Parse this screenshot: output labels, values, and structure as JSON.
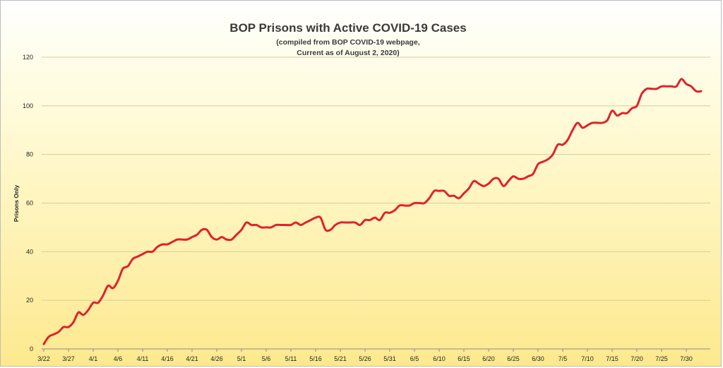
{
  "chart_data": {
    "type": "line",
    "title": "BOP Prisons with Active COVID-19 Cases",
    "subtitle_lines": [
      "(compiled from BOP COVID-19 webpage,",
      "Current as of August 2, 2020)"
    ],
    "xlabel": "",
    "ylabel": "Prisons Only",
    "ylim": [
      0,
      120
    ],
    "yticks": [
      0,
      20,
      40,
      60,
      80,
      100,
      120
    ],
    "grid": "horizontal",
    "legend": "none",
    "line_color": "#e0222b",
    "start_date": "3/22",
    "xtick_labels": [
      "3/22",
      "3/27",
      "4/1",
      "4/6",
      "4/11",
      "4/16",
      "4/21",
      "4/26",
      "5/1",
      "5/6",
      "5/11",
      "5/16",
      "5/21",
      "5/26",
      "5/31",
      "6/5",
      "6/10",
      "6/15",
      "6/20",
      "6/25",
      "6/30",
      "7/5",
      "7/10",
      "7/15",
      "7/20",
      "7/25",
      "7/30"
    ],
    "series": [
      {
        "values": [
          2,
          5,
          6,
          7,
          9,
          9,
          11,
          15,
          14,
          16,
          19,
          19,
          22,
          26,
          25,
          28,
          33,
          34,
          37,
          38,
          39,
          40,
          40,
          42,
          43,
          43,
          44,
          45,
          45,
          45,
          46,
          47,
          49,
          49,
          46,
          45,
          46,
          45,
          45,
          47,
          49,
          52,
          51,
          51,
          50,
          50,
          50,
          51,
          51,
          51,
          51,
          52,
          51,
          52,
          53,
          54,
          54,
          49,
          49,
          51,
          52,
          52,
          52,
          52,
          51,
          53,
          53,
          54,
          53,
          56,
          56,
          57,
          59,
          59,
          59,
          60,
          60,
          60,
          62,
          65,
          65,
          65,
          63,
          63,
          62,
          64,
          66,
          69,
          68,
          67,
          68,
          70,
          70,
          67,
          69,
          71,
          70,
          70,
          71,
          72,
          76,
          77,
          78,
          80,
          84,
          84,
          86,
          90,
          93,
          91,
          92,
          93,
          93,
          93,
          94,
          98,
          96,
          97,
          97,
          99,
          100,
          105,
          107,
          107,
          107,
          108,
          108,
          108,
          108,
          111,
          109,
          108,
          106,
          106
        ]
      }
    ]
  }
}
